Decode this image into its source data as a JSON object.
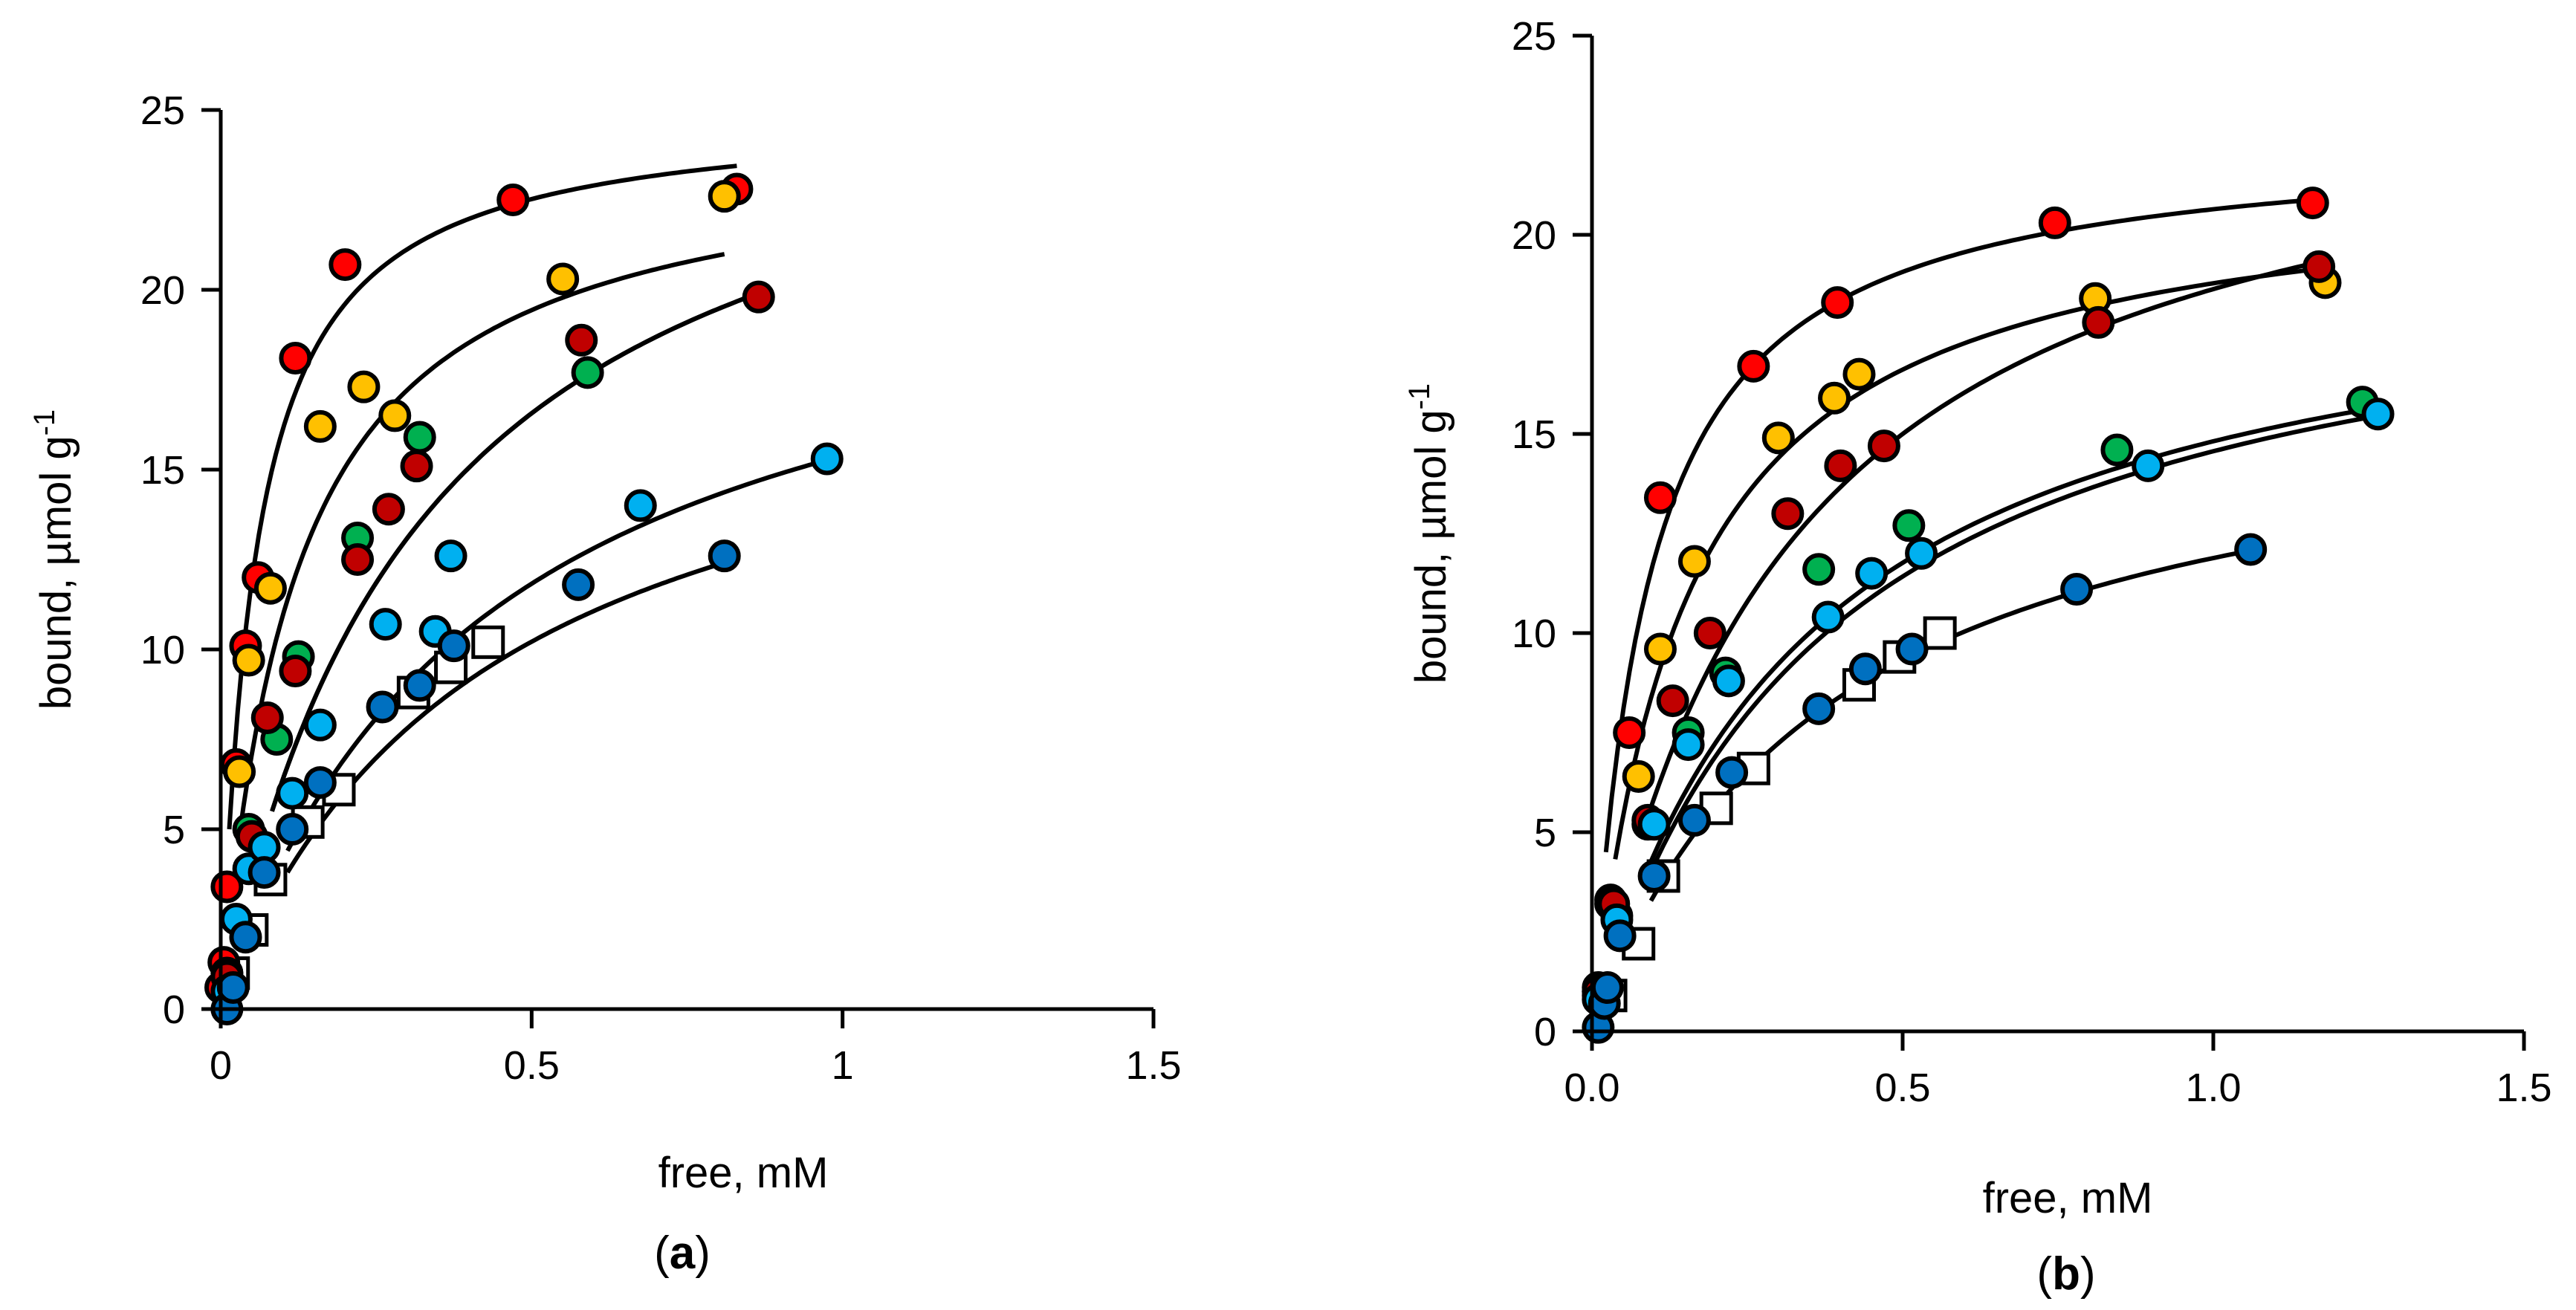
{
  "chart_data": [
    {
      "panel": "a",
      "type": "scatter",
      "title": "",
      "xlabel": "free, mM",
      "ylabel": "bound, µmol g",
      "ylabel_sup": "-1",
      "panel_label": {
        "open": "(",
        "letter": "a",
        "close": ")"
      },
      "xlim": [
        0,
        1.5
      ],
      "ylim": [
        0,
        25
      ],
      "xticks": [
        0,
        0.5,
        1,
        1.5
      ],
      "xtick_labels": [
        "0",
        "0.5",
        "1",
        "1.5"
      ],
      "yticks": [
        0,
        5,
        10,
        15,
        20,
        25
      ],
      "ytick_labels": [
        "0",
        "5",
        "10",
        "15",
        "20",
        "25"
      ],
      "grid": false,
      "series": [
        {
          "name": "red",
          "color": "#ff0000",
          "marker": "circle",
          "x": [
            0.0,
            0.005,
            0.01,
            0.025,
            0.04,
            0.06,
            0.12,
            0.2,
            0.47,
            0.83
          ],
          "y": [
            0.6,
            1.3,
            3.4,
            6.8,
            10.1,
            12.0,
            18.1,
            20.7,
            22.5,
            22.8
          ],
          "fit": {
            "bmax": 25.0,
            "kd": 0.055,
            "x_end": 0.83
          }
        },
        {
          "name": "orange",
          "color": "#ffc000",
          "marker": "circle",
          "x": [
            0.01,
            0.03,
            0.045,
            0.08,
            0.16,
            0.23,
            0.28,
            0.55,
            0.81
          ],
          "y": [
            1.0,
            6.6,
            9.7,
            11.7,
            16.2,
            17.3,
            16.5,
            20.3,
            22.6
          ],
          "fit": {
            "bmax": 24.1,
            "kd": 0.12,
            "x_end": 0.81
          }
        },
        {
          "name": "green",
          "color": "#00b050",
          "marker": "circle",
          "x": [
            0.01,
            0.045,
            0.09,
            0.125,
            0.22,
            0.32,
            0.59
          ],
          "y": [
            1.0,
            5.0,
            7.5,
            9.8,
            13.1,
            15.9,
            17.7
          ],
          "fit": {
            "bmax": 27.5,
            "kd": 0.33,
            "x_end": 0.87
          }
        },
        {
          "name": "dark red",
          "color": "#c00000",
          "marker": "circle",
          "x": [
            0.01,
            0.05,
            0.075,
            0.12,
            0.22,
            0.27,
            0.315,
            0.58,
            0.865
          ],
          "y": [
            0.9,
            4.8,
            8.1,
            9.4,
            12.5,
            13.9,
            15.1,
            18.6,
            19.8
          ],
          "fit": {
            "bmax": 27.5,
            "kd": 0.33,
            "x_end": 0.87
          }
        },
        {
          "name": "light blue",
          "color": "#00b0f0",
          "marker": "circle",
          "x": [
            0.01,
            0.025,
            0.045,
            0.07,
            0.115,
            0.16,
            0.265,
            0.345,
            0.37,
            0.675,
            0.975
          ],
          "y": [
            0.5,
            2.5,
            3.9,
            4.5,
            6.0,
            7.9,
            10.7,
            10.5,
            12.6,
            14.0,
            15.3
          ],
          "fit": {
            "bmax": 22.0,
            "kd": 0.43,
            "x_end": 0.975
          }
        },
        {
          "name": "blue",
          "color": "#0070c0",
          "marker": "circle",
          "x": [
            0.01,
            0.02,
            0.04,
            0.07,
            0.115,
            0.16,
            0.26,
            0.32,
            0.375,
            0.575,
            0.81
          ],
          "y": [
            0.0,
            0.6,
            2.0,
            3.8,
            5.0,
            6.3,
            8.4,
            9.0,
            10.1,
            11.8,
            12.6
          ],
          "fit": {
            "bmax": 19.0,
            "kd": 0.43,
            "x_end": 0.81
          }
        },
        {
          "name": "open square",
          "color": "#ffffff",
          "marker": "square",
          "x": [
            0.02,
            0.05,
            0.08,
            0.14,
            0.19,
            0.31,
            0.37,
            0.43
          ],
          "y": [
            1.0,
            2.2,
            3.6,
            5.2,
            6.1,
            8.8,
            9.5,
            10.2
          ]
        }
      ]
    },
    {
      "panel": "b",
      "type": "scatter",
      "title": "",
      "xlabel": "free, mM",
      "ylabel": "bound, µmol g",
      "ylabel_sup": "-1",
      "panel_label": {
        "open": "(",
        "letter": "b",
        "close": ")"
      },
      "xlim": [
        0,
        1.5
      ],
      "ylim": [
        0,
        25
      ],
      "xticks": [
        0,
        0.5,
        1,
        1.5
      ],
      "xtick_labels": [
        "0.0",
        "0.5",
        "1.0",
        "1.5"
      ],
      "yticks": [
        0,
        5,
        10,
        15,
        20,
        25
      ],
      "ytick_labels": [
        "0",
        "5",
        "10",
        "15",
        "20",
        "25"
      ],
      "grid": false,
      "series": [
        {
          "name": "red",
          "color": "#ff0000",
          "marker": "circle",
          "x": [
            0.01,
            0.03,
            0.06,
            0.11,
            0.26,
            0.395,
            0.745,
            1.16
          ],
          "y": [
            1.1,
            3.3,
            7.5,
            13.4,
            16.7,
            18.3,
            20.3,
            20.8
          ],
          "fit": {
            "bmax": 22.5,
            "kd": 0.09,
            "x_end": 1.16
          }
        },
        {
          "name": "orange",
          "color": "#ffc000",
          "marker": "circle",
          "x": [
            0.01,
            0.03,
            0.075,
            0.11,
            0.165,
            0.3,
            0.39,
            0.43,
            0.81,
            1.18
          ],
          "y": [
            1.0,
            3.2,
            6.4,
            9.6,
            11.8,
            14.9,
            15.9,
            16.5,
            18.4,
            18.8
          ],
          "fit": {
            "bmax": 21.6,
            "kd": 0.15,
            "x_end": 1.18
          }
        },
        {
          "name": "green",
          "color": "#00b050",
          "marker": "circle",
          "x": [
            0.01,
            0.04,
            0.09,
            0.155,
            0.215,
            0.365,
            0.51,
            0.845,
            1.24
          ],
          "y": [
            0.9,
            2.9,
            5.2,
            7.5,
            9.0,
            11.6,
            12.7,
            14.6,
            15.8
          ],
          "fit": {
            "bmax": 20.0,
            "kd": 0.35,
            "x_end": 1.24
          }
        },
        {
          "name": "dark red",
          "color": "#c00000",
          "marker": "circle",
          "x": [
            0.01,
            0.035,
            0.09,
            0.13,
            0.19,
            0.315,
            0.4,
            0.47,
            0.815,
            1.17
          ],
          "y": [
            1.0,
            3.2,
            5.3,
            8.3,
            10.0,
            13.0,
            14.2,
            14.7,
            17.8,
            19.2
          ],
          "fit": {
            "bmax": 24.6,
            "kd": 0.32,
            "x_end": 1.17
          }
        },
        {
          "name": "light blue",
          "color": "#00b0f0",
          "marker": "circle",
          "x": [
            0.01,
            0.04,
            0.1,
            0.155,
            0.22,
            0.38,
            0.45,
            0.53,
            0.895,
            1.265
          ],
          "y": [
            0.8,
            2.8,
            5.2,
            7.2,
            8.8,
            10.4,
            11.5,
            12.0,
            14.2,
            15.5
          ],
          "fit": {
            "bmax": 20.1,
            "kd": 0.38,
            "x_end": 1.265
          }
        },
        {
          "name": "blue",
          "color": "#0070c0",
          "marker": "circle",
          "x": [
            0.01,
            0.02,
            0.025,
            0.045,
            0.1,
            0.165,
            0.225,
            0.365,
            0.44,
            0.515,
            0.78,
            1.06
          ],
          "y": [
            0.1,
            0.7,
            1.1,
            2.4,
            3.9,
            5.3,
            6.5,
            8.1,
            9.1,
            9.6,
            11.1,
            12.1
          ],
          "fit": {
            "bmax": 16.4,
            "kd": 0.38,
            "x_end": 1.06
          }
        },
        {
          "name": "open square",
          "color": "#ffffff",
          "marker": "square",
          "x": [
            0.03,
            0.075,
            0.115,
            0.2,
            0.26,
            0.43,
            0.495,
            0.56
          ],
          "y": [
            0.9,
            2.2,
            3.9,
            5.6,
            6.6,
            8.7,
            9.4,
            10.0
          ]
        }
      ]
    }
  ]
}
